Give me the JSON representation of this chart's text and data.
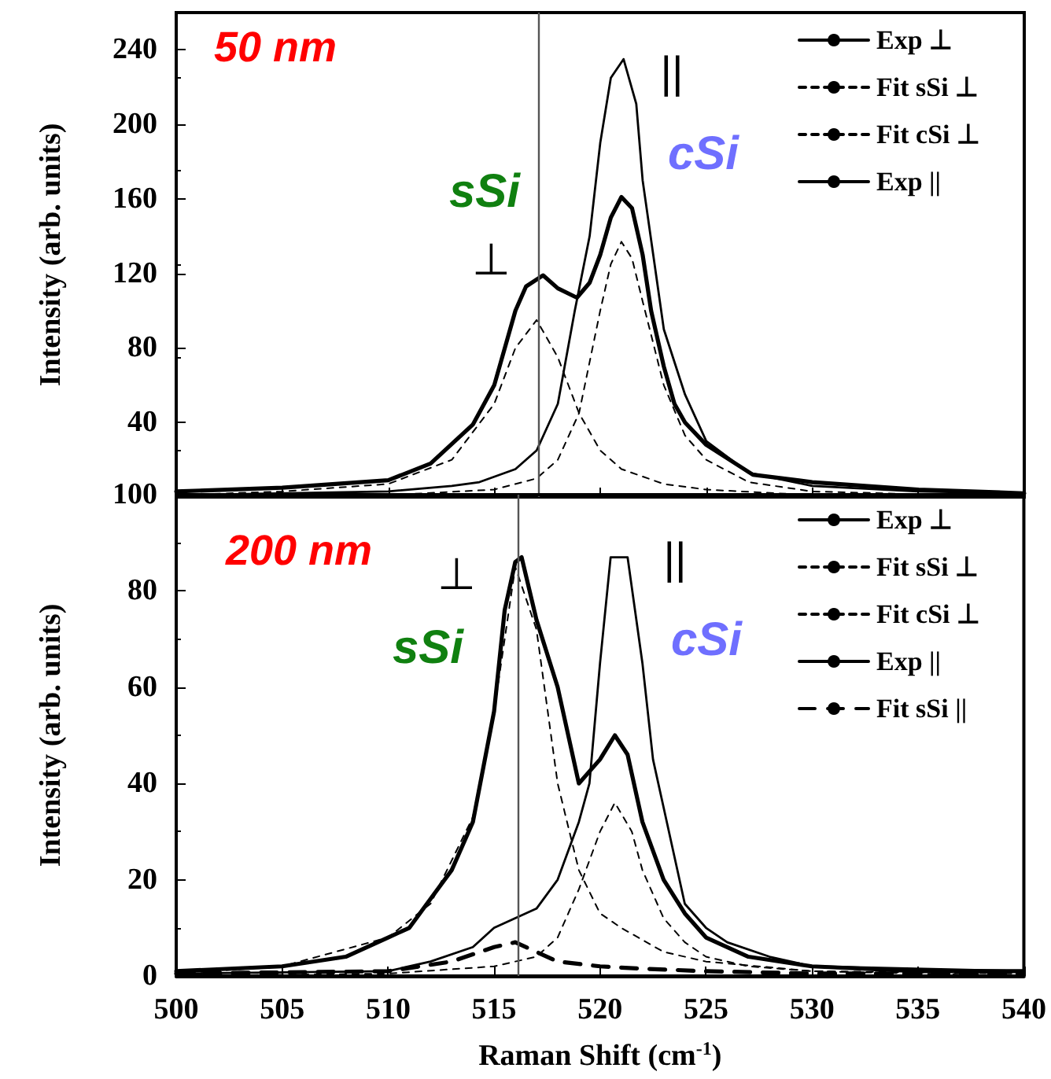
{
  "chart_data": [
    {
      "type": "line",
      "ylabel": "Intensity (arb. units)",
      "xlim": [
        500,
        540
      ],
      "xticks": [
        500,
        505,
        510,
        515,
        520,
        525,
        530,
        535,
        540
      ],
      "ylim": [
        0,
        260
      ],
      "yticks": [
        40,
        80,
        120,
        160,
        200,
        240
      ],
      "tick_labels": "y",
      "legend": "top right",
      "marker": "none",
      "grid": false,
      "annotations": [
        "50 nm",
        "sSi",
        "⊥",
        "cSi",
        "||"
      ],
      "ref_lines": [
        {
          "axis": "x",
          "value": 517.1,
          "color": "#555555"
        }
      ],
      "series": [
        {
          "name": "Exp ⊥",
          "color": "#000000",
          "line_style": "solid",
          "x": [
            500,
            505,
            510,
            512,
            514,
            515,
            516,
            516.5,
            517.3,
            518,
            518.9,
            519.5,
            520,
            520.5,
            521,
            521.5,
            522,
            522.4,
            523,
            523.5,
            524,
            525,
            527.2,
            530,
            535,
            540
          ],
          "values": [
            3,
            5,
            9,
            18,
            39,
            60,
            100,
            113,
            119,
            112,
            107,
            115,
            130,
            150,
            161,
            155,
            130,
            100,
            70,
            50,
            40,
            28,
            12,
            8,
            4,
            2
          ]
        },
        {
          "name": "Fit sSi ⊥",
          "color": "#000000",
          "line_style": "dashed",
          "x": [
            500,
            505,
            510,
            513,
            515,
            516,
            517,
            518,
            519,
            520,
            521,
            523,
            525,
            530,
            540
          ],
          "values": [
            1,
            3,
            7,
            20,
            50,
            80,
            95,
            75,
            45,
            25,
            15,
            7,
            4,
            1,
            0
          ]
        },
        {
          "name": "Fit cSi ⊥",
          "color": "#000000",
          "line_style": "dashed",
          "x": [
            500,
            510,
            515,
            517,
            518,
            519,
            520,
            520.5,
            521,
            521.5,
            522,
            523,
            524,
            525,
            527,
            530,
            540
          ],
          "values": [
            0,
            1,
            4,
            10,
            20,
            45,
            100,
            125,
            137,
            128,
            105,
            60,
            33,
            20,
            8,
            3,
            0
          ]
        },
        {
          "name": "Exp ||",
          "color": "#000000",
          "line_style": "solid",
          "x": [
            500,
            510,
            513,
            514.3,
            516,
            517,
            518,
            518.8,
            519.5,
            520,
            520.5,
            521.1,
            521.7,
            522,
            522.5,
            523,
            524,
            525,
            527,
            530,
            535,
            540
          ],
          "values": [
            1,
            3,
            6,
            8,
            15,
            25,
            50,
            100,
            140,
            190,
            225,
            235,
            211,
            170,
            130,
            90,
            55,
            30,
            13,
            6,
            3,
            2
          ]
        }
      ]
    },
    {
      "type": "line",
      "xlabel": "Raman Shift (cm$^{-1}$)",
      "ylabel": "Intensity (arb. units)",
      "xlim": [
        500,
        540
      ],
      "xticks": [
        500,
        505,
        510,
        515,
        520,
        525,
        530,
        535,
        540
      ],
      "ylim": [
        0,
        100
      ],
      "yticks": [
        0,
        20,
        40,
        60,
        80,
        100
      ],
      "legend": "top right",
      "marker": "none",
      "grid": false,
      "annotations": [
        "200 nm",
        "⊥",
        "sSi",
        "cSi",
        "||"
      ],
      "ref_lines": [
        {
          "axis": "x",
          "value": 516.1,
          "color": "#555555"
        }
      ],
      "series": [
        {
          "name": "Exp ⊥",
          "color": "#000000",
          "line_style": "solid",
          "x": [
            500,
            505,
            508,
            510,
            511,
            512,
            513,
            514,
            515,
            515.5,
            516,
            516.3,
            517,
            518,
            519,
            520,
            520.7,
            521.3,
            522,
            523,
            524,
            525,
            527,
            530,
            535,
            540
          ],
          "values": [
            1,
            2,
            4,
            8,
            10,
            16,
            22,
            32,
            55,
            76,
            86,
            87,
            74,
            60,
            40,
            45,
            50,
            46,
            32,
            20,
            13,
            8,
            4,
            2,
            1,
            1
          ]
        },
        {
          "name": "Fit sSi ⊥",
          "color": "#000000",
          "line_style": "dashed",
          "x": [
            500,
            505,
            510,
            512,
            514,
            515,
            516,
            517,
            518,
            519,
            520,
            521,
            523,
            525,
            530,
            540
          ],
          "values": [
            0.5,
            2,
            8,
            15,
            33,
            55,
            85,
            72,
            40,
            22,
            13,
            10,
            5,
            3,
            1,
            0.5
          ]
        },
        {
          "name": "Fit cSi ⊥",
          "color": "#000000",
          "line_style": "dashed",
          "x": [
            500,
            510,
            515,
            516,
            517,
            518,
            519,
            520,
            520.7,
            521.5,
            522,
            523,
            524,
            525,
            527,
            530,
            540
          ],
          "values": [
            0,
            0.5,
            2,
            3,
            4,
            8,
            18,
            30,
            36,
            30,
            22,
            12,
            7,
            4,
            2,
            1,
            0
          ]
        },
        {
          "name": "Exp ||",
          "color": "#000000",
          "line_style": "solid",
          "x": [
            500,
            510,
            512,
            514,
            515,
            516,
            517,
            518,
            519,
            519.5,
            520,
            520.5,
            521.3,
            522,
            522.5,
            523,
            524,
            525,
            526,
            528,
            530,
            540
          ],
          "values": [
            0.5,
            1,
            3,
            6,
            10,
            12,
            14,
            20,
            32,
            40,
            65,
            87,
            87,
            65,
            45,
            35,
            15,
            10,
            7,
            4,
            2,
            1
          ]
        },
        {
          "name": "Fit sSi ||",
          "color": "#000000",
          "line_style": "dashed",
          "x": [
            500,
            510,
            513,
            515,
            516,
            517,
            518,
            520,
            522,
            525,
            530,
            540
          ],
          "values": [
            0.5,
            1,
            3,
            6,
            7,
            5,
            3,
            2,
            1.5,
            1,
            0.5,
            0.5
          ]
        }
      ]
    }
  ]
}
